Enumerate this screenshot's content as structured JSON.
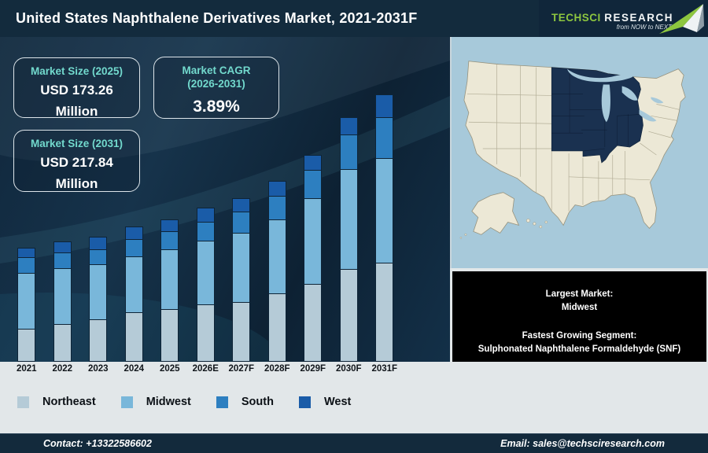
{
  "header": {
    "title": "United States Naphthalene Derivatives Market, 2021-2031F",
    "logo": {
      "brand_primary": "TechSci",
      "brand_secondary": "Research",
      "tagline": "from NOW to NEXT"
    }
  },
  "stats": [
    {
      "label_lines": [
        "Market Size (2025)"
      ],
      "value_lines": [
        "USD 173.26",
        "Million"
      ]
    },
    {
      "label_lines": [
        "Market CAGR",
        "(2026-2031)"
      ],
      "value_lines": [
        "3.89%"
      ]
    },
    {
      "label_lines": [
        "Market Size (2031)"
      ],
      "value_lines": [
        "USD 217.84",
        "Million"
      ]
    }
  ],
  "chart_data": {
    "type": "bar",
    "stacked": true,
    "note": "no numeric value axis is shown; series values are relative stacked-segment heights in screen pixels",
    "categories": [
      "2021",
      "2022",
      "2023",
      "2024",
      "2025",
      "2026E",
      "2027F",
      "2028F",
      "2029F",
      "2030F",
      "2031F"
    ],
    "series": [
      {
        "name": "Northeast",
        "color": "#b5cbd7",
        "values": [
          41,
          47,
          53,
          62,
          66,
          72,
          75,
          86,
          98,
          117,
          125
        ]
      },
      {
        "name": "Midwest",
        "color": "#79b7da",
        "values": [
          71,
          71,
          70,
          71,
          76,
          81,
          88,
          94,
          109,
          127,
          133
        ]
      },
      {
        "name": "South",
        "color": "#2d7fc0",
        "values": [
          20,
          20,
          19,
          22,
          23,
          24,
          27,
          30,
          36,
          44,
          52
        ]
      },
      {
        "name": "West",
        "color": "#1a5ca8",
        "values": [
          13,
          15,
          17,
          17,
          16,
          19,
          18,
          20,
          20,
          23,
          30
        ]
      }
    ],
    "title": "United States Naphthalene Derivatives Market, 2021-2031F",
    "xlabel": "",
    "ylabel": "",
    "legend_position": "bottom",
    "grid": false,
    "annotations": {
      "market_size_2025": "USD 173.26 Million",
      "market_size_2031": "USD 217.84 Million",
      "cagr_2026_2031": "3.89%"
    }
  },
  "map": {
    "highlighted_region": "Midwest",
    "highlight_color": "#1a3150",
    "land_color": "#ece8d6",
    "water_color": "#a7c9da"
  },
  "info_box": {
    "l1": "Largest Market:",
    "l2": "Midwest",
    "l3": "Fastest Growing Segment:",
    "l4": "Sulphonated Naphthalene Formaldehyde (SNF)"
  },
  "footer": {
    "contact": "Contact: +13322586602",
    "email": "Email: sales@techsciresearch.com"
  },
  "colors": {
    "header_bg": "#132b3d",
    "chart_bg": "#10273c",
    "accent_teal": "#72d9cd",
    "strip_bg": "#e2e7e9"
  }
}
